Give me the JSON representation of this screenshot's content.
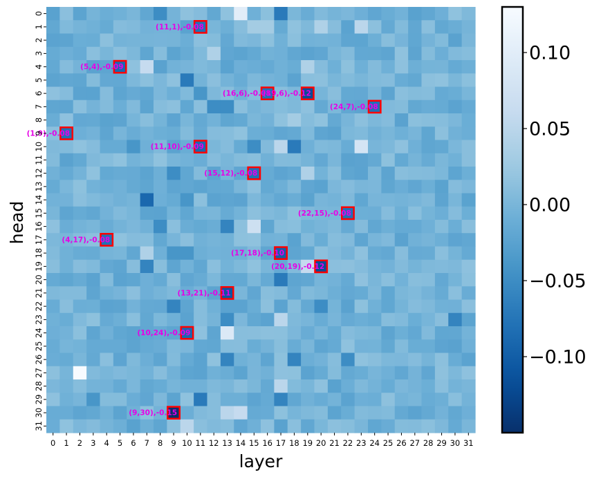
{
  "chart_data": {
    "type": "heatmap",
    "xlabel": "layer",
    "ylabel": "head",
    "x_ticks": [
      "0",
      "1",
      "2",
      "3",
      "4",
      "5",
      "6",
      "7",
      "8",
      "9",
      "10",
      "11",
      "12",
      "13",
      "14",
      "15",
      "16",
      "17",
      "18",
      "19",
      "20",
      "21",
      "22",
      "23",
      "24",
      "25",
      "26",
      "27",
      "28",
      "29",
      "30",
      "31"
    ],
    "y_ticks": [
      "0",
      "1",
      "2",
      "3",
      "4",
      "5",
      "6",
      "7",
      "8",
      "9",
      "10",
      "11",
      "12",
      "13",
      "14",
      "15",
      "16",
      "17",
      "18",
      "19",
      "20",
      "21",
      "22",
      "23",
      "24",
      "25",
      "26",
      "27",
      "28",
      "29",
      "30",
      "31"
    ],
    "colormap": "Blues_r",
    "vmin": -0.15,
    "vmax": 0.13,
    "colorbar_ticks": [
      0.1,
      0.05,
      0.0,
      -0.05,
      -0.1
    ],
    "colorbar_tick_labels": [
      "0.10",
      "0.05",
      "0.00",
      "−0.05",
      "−0.10"
    ],
    "default_value": -0.005,
    "notable_cells": [
      {
        "layer": 14,
        "head": 0,
        "value": 0.1
      },
      {
        "layer": 17,
        "head": 0,
        "value": -0.07
      },
      {
        "layer": 8,
        "head": 0,
        "value": -0.05
      },
      {
        "layer": 20,
        "head": 1,
        "value": 0.04
      },
      {
        "layer": 23,
        "head": 1,
        "value": 0.05
      },
      {
        "layer": 15,
        "head": 1,
        "value": 0.03
      },
      {
        "layer": 16,
        "head": 1,
        "value": 0.03
      },
      {
        "layer": 12,
        "head": 3,
        "value": 0.04
      },
      {
        "layer": 7,
        "head": 4,
        "value": 0.06
      },
      {
        "layer": 19,
        "head": 4,
        "value": 0.04
      },
      {
        "layer": 10,
        "head": 5,
        "value": -0.07
      },
      {
        "layer": 11,
        "head": 6,
        "value": -0.04
      },
      {
        "layer": 12,
        "head": 7,
        "value": -0.05
      },
      {
        "layer": 13,
        "head": 7,
        "value": -0.05
      },
      {
        "layer": 18,
        "head": 8,
        "value": 0.03
      },
      {
        "layer": 18,
        "head": 10,
        "value": -0.07
      },
      {
        "layer": 23,
        "head": 10,
        "value": 0.08
      },
      {
        "layer": 17,
        "head": 10,
        "value": 0.05
      },
      {
        "layer": 6,
        "head": 10,
        "value": -0.04
      },
      {
        "layer": 15,
        "head": 10,
        "value": -0.05
      },
      {
        "layer": 9,
        "head": 12,
        "value": -0.05
      },
      {
        "layer": 19,
        "head": 12,
        "value": 0.04
      },
      {
        "layer": 7,
        "head": 14,
        "value": -0.09
      },
      {
        "layer": 10,
        "head": 14,
        "value": -0.04
      },
      {
        "layer": 15,
        "head": 16,
        "value": 0.07
      },
      {
        "layer": 13,
        "head": 16,
        "value": -0.06
      },
      {
        "layer": 8,
        "head": 16,
        "value": -0.05
      },
      {
        "layer": 7,
        "head": 18,
        "value": 0.04
      },
      {
        "layer": 9,
        "head": 18,
        "value": -0.04
      },
      {
        "layer": 10,
        "head": 18,
        "value": -0.04
      },
      {
        "layer": 7,
        "head": 19,
        "value": -0.06
      },
      {
        "layer": 19,
        "head": 19,
        "value": 0.06
      },
      {
        "layer": 17,
        "head": 20,
        "value": -0.07
      },
      {
        "layer": 20,
        "head": 22,
        "value": -0.05
      },
      {
        "layer": 9,
        "head": 22,
        "value": -0.06
      },
      {
        "layer": 13,
        "head": 23,
        "value": -0.05
      },
      {
        "layer": 30,
        "head": 23,
        "value": -0.06
      },
      {
        "layer": 17,
        "head": 23,
        "value": 0.05
      },
      {
        "layer": 13,
        "head": 24,
        "value": 0.09
      },
      {
        "layer": 2,
        "head": 27,
        "value": 0.13
      },
      {
        "layer": 13,
        "head": 26,
        "value": -0.06
      },
      {
        "layer": 18,
        "head": 26,
        "value": -0.06
      },
      {
        "layer": 22,
        "head": 26,
        "value": -0.05
      },
      {
        "layer": 17,
        "head": 28,
        "value": 0.05
      },
      {
        "layer": 11,
        "head": 29,
        "value": -0.07
      },
      {
        "layer": 17,
        "head": 29,
        "value": -0.06
      },
      {
        "layer": 13,
        "head": 30,
        "value": 0.05
      },
      {
        "layer": 14,
        "head": 30,
        "value": 0.06
      },
      {
        "layer": 10,
        "head": 31,
        "value": 0.05
      },
      {
        "layer": 3,
        "head": 29,
        "value": -0.04
      }
    ],
    "highlighted": [
      {
        "layer": 11,
        "head": 1,
        "value": -0.08,
        "label": "(11,1),-0.08"
      },
      {
        "layer": 5,
        "head": 4,
        "value": -0.09,
        "label": "(5,4),-0.09"
      },
      {
        "layer": 16,
        "head": 6,
        "value": -0.08,
        "label": "(16,6),-0.08"
      },
      {
        "layer": 19,
        "head": 6,
        "value": -0.12,
        "label": "(19,6),-0.12"
      },
      {
        "layer": 24,
        "head": 7,
        "value": -0.08,
        "label": "(24,7),-0.08"
      },
      {
        "layer": 1,
        "head": 9,
        "value": -0.08,
        "label": "(1,9),-0.08"
      },
      {
        "layer": 11,
        "head": 10,
        "value": -0.09,
        "label": "(11,10),-0.09"
      },
      {
        "layer": 15,
        "head": 12,
        "value": -0.08,
        "label": "(15,12),-0.08"
      },
      {
        "layer": 22,
        "head": 15,
        "value": -0.08,
        "label": "(22,15),-0.08"
      },
      {
        "layer": 4,
        "head": 17,
        "value": -0.08,
        "label": "(4,17),-0.08"
      },
      {
        "layer": 17,
        "head": 18,
        "value": -0.1,
        "label": "(17,18),-0.10"
      },
      {
        "layer": 20,
        "head": 19,
        "value": -0.12,
        "label": "(20,19),-0.12"
      },
      {
        "layer": 13,
        "head": 21,
        "value": -0.11,
        "label": "(13,21),-0.11"
      },
      {
        "layer": 10,
        "head": 24,
        "value": -0.09,
        "label": "(10,24),-0.09"
      },
      {
        "layer": 9,
        "head": 30,
        "value": -0.15,
        "label": "(9,30),-0.15"
      }
    ],
    "colors": {
      "highlight_box": "#ff0000",
      "annotation_text": "#e600e6"
    }
  }
}
